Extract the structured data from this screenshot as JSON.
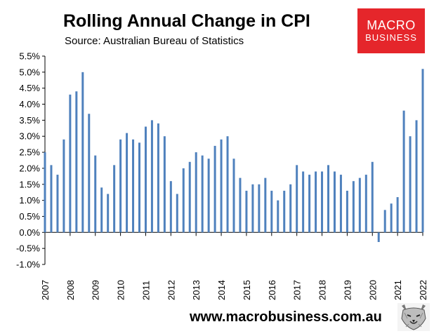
{
  "title": "Rolling Annual Change in CPI",
  "subtitle": "Source: Australian Bureau of Statistics",
  "logo": {
    "line1": "MACRO",
    "line2": "BUSINESS",
    "color": "#e5262b"
  },
  "website": "www.macrobusiness.com.au",
  "mascot_icon": "wolf-icon",
  "chart_data": {
    "type": "bar",
    "title": "Rolling Annual Change in CPI",
    "subtitle": "Source: Australian Bureau of Statistics",
    "xlabel": "",
    "ylabel": "",
    "ylim": [
      -1.0,
      5.5
    ],
    "yticks": [
      -1.0,
      -0.5,
      0.0,
      0.5,
      1.0,
      1.5,
      2.0,
      2.5,
      3.0,
      3.5,
      4.0,
      4.5,
      5.0,
      5.5
    ],
    "ytick_labels": [
      "-1.0%",
      "-0.5%",
      "0.0%",
      "0.5%",
      "1.0%",
      "1.5%",
      "2.0%",
      "2.5%",
      "3.0%",
      "3.5%",
      "4.0%",
      "4.5%",
      "5.0%",
      "5.5%"
    ],
    "x_year_labels": [
      "2007",
      "2008",
      "2009",
      "2010",
      "2011",
      "2012",
      "2013",
      "2014",
      "2015",
      "2016",
      "2017",
      "2018",
      "2019",
      "2020",
      "2021",
      "2022"
    ],
    "bar_color": "#4f81bd",
    "grid": false,
    "legend": "none",
    "values": [
      2.5,
      2.1,
      1.8,
      2.9,
      4.3,
      4.4,
      5.0,
      3.7,
      2.4,
      1.4,
      1.2,
      2.1,
      2.9,
      3.1,
      2.9,
      2.8,
      3.3,
      3.5,
      3.4,
      3.0,
      1.6,
      1.2,
      2.0,
      2.2,
      2.5,
      2.4,
      2.3,
      2.7,
      2.9,
      3.0,
      2.3,
      1.7,
      1.3,
      1.5,
      1.5,
      1.7,
      1.3,
      1.0,
      1.3,
      1.5,
      2.1,
      1.9,
      1.8,
      1.9,
      1.9,
      2.1,
      1.9,
      1.8,
      1.3,
      1.6,
      1.7,
      1.8,
      2.2,
      -0.3,
      0.7,
      0.9,
      1.1,
      3.8,
      3.0,
      3.5,
      5.1
    ]
  }
}
